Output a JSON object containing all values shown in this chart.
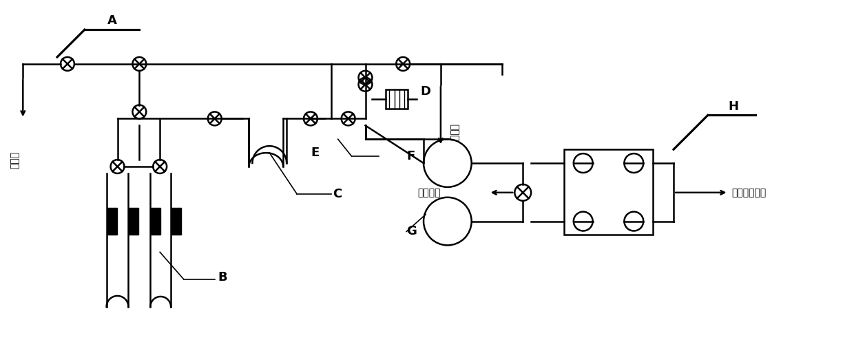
{
  "bg_color": "#ffffff",
  "line_color": "#000000",
  "label_A": "A",
  "label_B": "B",
  "label_C": "C",
  "label_D": "D",
  "label_E": "E",
  "label_F": "F",
  "label_G": "G",
  "label_H": "H",
  "text_high_vacuum": "高真空",
  "text_low_vacuum": "低真空",
  "text_tail_pump": "到尾气泵",
  "text_ms_source": "到质谱离子源"
}
